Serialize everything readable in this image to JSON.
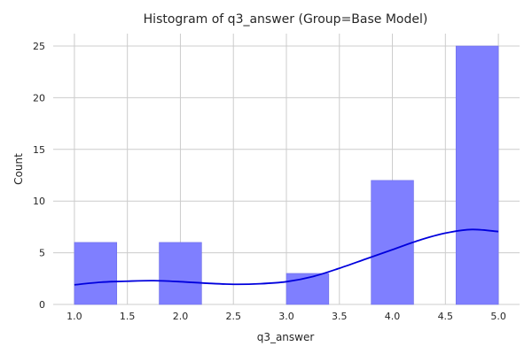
{
  "chart_data": {
    "type": "bar",
    "title": "Histogram of q3_answer (Group=Base Model)",
    "xlabel": "q3_answer",
    "ylabel": "Count",
    "xlim": [
      0.8,
      5.2
    ],
    "ylim": [
      0,
      26.2
    ],
    "xticks": [
      1.0,
      1.5,
      2.0,
      2.5,
      3.0,
      3.5,
      4.0,
      4.5,
      5.0
    ],
    "xtick_labels": [
      "1.0",
      "1.5",
      "2.0",
      "2.5",
      "3.0",
      "3.5",
      "4.0",
      "4.5",
      "5.0"
    ],
    "yticks": [
      0,
      5,
      10,
      15,
      20,
      25
    ],
    "ytick_labels": [
      "0",
      "5",
      "10",
      "15",
      "20",
      "25"
    ],
    "grid": true,
    "bins": [
      {
        "x0": 1.0,
        "x1": 1.4,
        "count": 6
      },
      {
        "x0": 1.4,
        "x1": 1.8,
        "count": 0
      },
      {
        "x0": 1.8,
        "x1": 2.2,
        "count": 6
      },
      {
        "x0": 2.2,
        "x1": 2.6,
        "count": 0
      },
      {
        "x0": 2.6,
        "x1": 3.0,
        "count": 0
      },
      {
        "x0": 3.0,
        "x1": 3.4,
        "count": 3
      },
      {
        "x0": 3.4,
        "x1": 3.8,
        "count": 0
      },
      {
        "x0": 3.8,
        "x1": 4.2,
        "count": 12
      },
      {
        "x0": 4.2,
        "x1": 4.6,
        "count": 0
      },
      {
        "x0": 4.6,
        "x1": 5.0,
        "count": 25
      }
    ],
    "kde": {
      "x": [
        1.0,
        1.25,
        1.5,
        1.75,
        2.0,
        2.25,
        2.5,
        2.75,
        3.0,
        3.25,
        3.5,
        3.75,
        4.0,
        4.25,
        4.5,
        4.75,
        5.0
      ],
      "y": [
        1.9,
        2.15,
        2.25,
        2.3,
        2.2,
        2.05,
        1.95,
        2.0,
        2.2,
        2.7,
        3.5,
        4.4,
        5.3,
        6.2,
        6.9,
        7.25,
        7.05
      ]
    },
    "colors": {
      "bar_fill": "#7f7fff",
      "bar_edge": "#6e6ee6",
      "kde_line": "#0000dd"
    }
  }
}
